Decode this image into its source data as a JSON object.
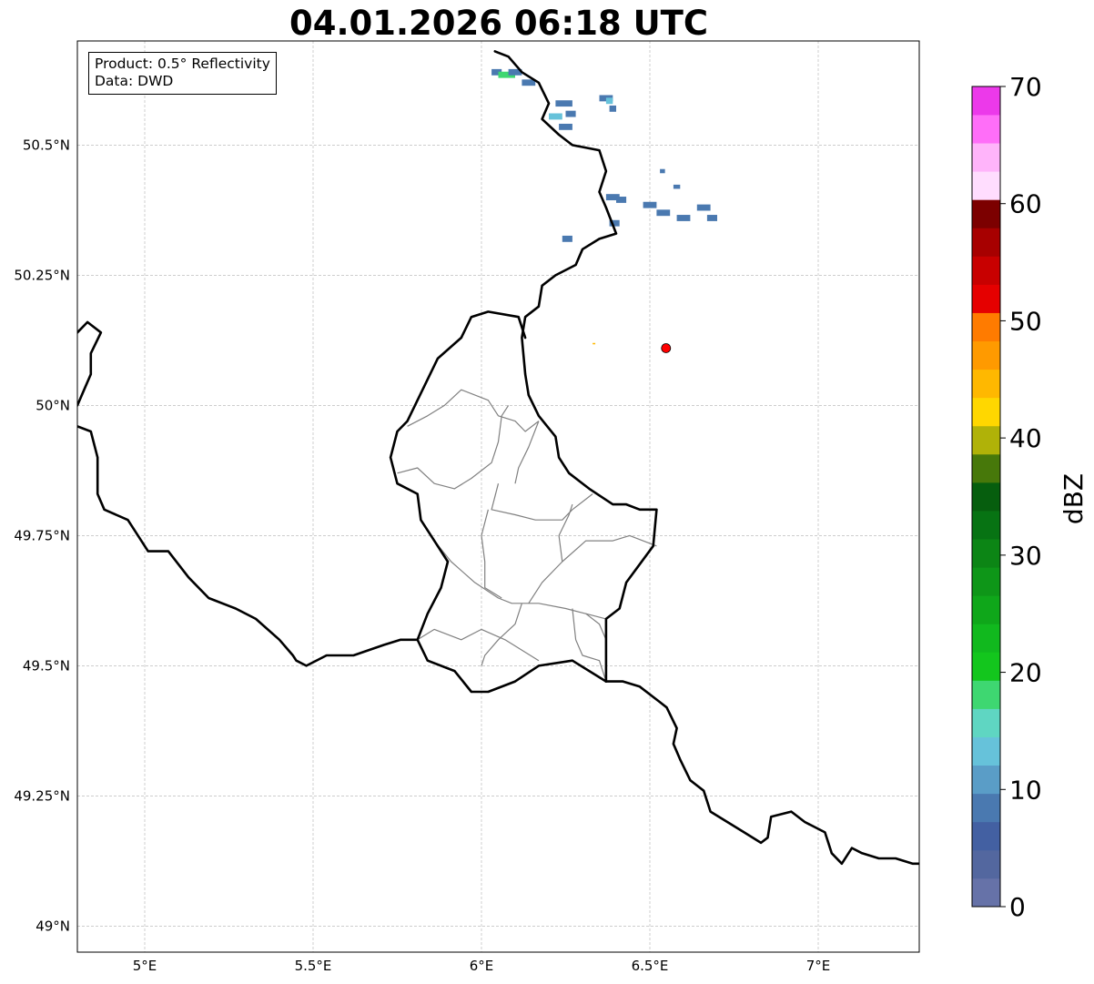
{
  "title": "04.01.2026 06:18 UTC",
  "info": {
    "product": "Product: 0.5° Reflectivity",
    "data": "Data: DWD"
  },
  "map": {
    "lon_range": [
      4.8,
      7.3
    ],
    "lat_range": [
      48.95,
      50.7
    ],
    "lat_ticks": [
      {
        "value": 50.5,
        "label": "50.5°N"
      },
      {
        "value": 50.25,
        "label": "50.25°N"
      },
      {
        "value": 50.0,
        "label": "50°N"
      },
      {
        "value": 49.75,
        "label": "49.75°N"
      },
      {
        "value": 49.5,
        "label": "49.5°N"
      },
      {
        "value": 49.25,
        "label": "49.25°N"
      },
      {
        "value": 49.0,
        "label": "49°N"
      }
    ],
    "lon_ticks": [
      {
        "value": 5.0,
        "label": "5°E"
      },
      {
        "value": 5.5,
        "label": "5.5°E"
      },
      {
        "value": 6.0,
        "label": "6°E"
      },
      {
        "value": 6.5,
        "label": "6.5°E"
      },
      {
        "value": 7.0,
        "label": "7°E"
      }
    ],
    "grid": true,
    "radar_site": {
      "lon": 6.548,
      "lat": 50.11,
      "color": "#ff0000"
    },
    "borders": [
      [
        [
          6.04,
          50.68
        ],
        [
          6.08,
          50.67
        ],
        [
          6.12,
          50.64
        ],
        [
          6.17,
          50.62
        ],
        [
          6.2,
          50.58
        ],
        [
          6.18,
          50.55
        ],
        [
          6.23,
          50.52
        ],
        [
          6.27,
          50.5
        ],
        [
          6.35,
          50.49
        ],
        [
          6.37,
          50.45
        ],
        [
          6.35,
          50.41
        ],
        [
          6.37,
          50.38
        ],
        [
          6.4,
          50.33
        ],
        [
          6.35,
          50.32
        ],
        [
          6.3,
          50.3
        ],
        [
          6.28,
          50.27
        ],
        [
          6.22,
          50.25
        ],
        [
          6.18,
          50.23
        ],
        [
          6.17,
          50.19
        ],
        [
          6.13,
          50.17
        ],
        [
          6.12,
          50.13
        ],
        [
          6.13,
          50.06
        ],
        [
          6.14,
          50.02
        ],
        [
          6.17,
          49.98
        ],
        [
          6.22,
          49.94
        ],
        [
          6.23,
          49.9
        ],
        [
          6.26,
          49.87
        ],
        [
          6.32,
          49.84
        ],
        [
          6.39,
          49.81
        ],
        [
          6.43,
          49.81
        ],
        [
          6.47,
          49.8
        ],
        [
          6.52,
          49.8
        ],
        [
          6.51,
          49.73
        ],
        [
          6.43,
          49.66
        ],
        [
          6.41,
          49.61
        ],
        [
          6.37,
          49.59
        ],
        [
          6.37,
          49.47
        ]
      ],
      [
        [
          6.37,
          49.47
        ],
        [
          6.27,
          49.51
        ],
        [
          6.17,
          49.5
        ],
        [
          6.1,
          49.47
        ],
        [
          6.02,
          49.45
        ],
        [
          5.97,
          49.45
        ],
        [
          5.92,
          49.49
        ],
        [
          5.84,
          49.51
        ],
        [
          5.81,
          49.55
        ],
        [
          5.76,
          49.55
        ],
        [
          5.71,
          49.54
        ],
        [
          5.62,
          49.52
        ],
        [
          5.54,
          49.52
        ],
        [
          5.48,
          49.5
        ],
        [
          5.45,
          49.51
        ],
        [
          5.44,
          49.52
        ],
        [
          5.4,
          49.55
        ],
        [
          5.33,
          49.59
        ],
        [
          5.27,
          49.61
        ],
        [
          5.19,
          49.63
        ],
        [
          5.13,
          49.67
        ],
        [
          5.07,
          49.72
        ],
        [
          5.01,
          49.72
        ],
        [
          4.95,
          49.78
        ],
        [
          4.88,
          49.8
        ],
        [
          4.86,
          49.83
        ],
        [
          4.86,
          49.9
        ],
        [
          4.84,
          49.95
        ],
        [
          4.8,
          49.96
        ]
      ],
      [
        [
          5.81,
          49.55
        ],
        [
          5.84,
          49.6
        ],
        [
          5.88,
          49.65
        ],
        [
          5.9,
          49.7
        ],
        [
          5.86,
          49.74
        ],
        [
          5.82,
          49.78
        ],
        [
          5.81,
          49.83
        ],
        [
          5.75,
          49.85
        ],
        [
          5.73,
          49.9
        ],
        [
          5.75,
          49.95
        ],
        [
          5.78,
          49.97
        ],
        [
          5.81,
          50.01
        ],
        [
          5.84,
          50.05
        ],
        [
          5.87,
          50.09
        ],
        [
          5.94,
          50.13
        ],
        [
          5.97,
          50.17
        ],
        [
          6.02,
          50.18
        ],
        [
          6.11,
          50.17
        ],
        [
          6.13,
          50.13
        ]
      ],
      [
        [
          4.8,
          50.14
        ],
        [
          4.83,
          50.16
        ],
        [
          4.87,
          50.14
        ],
        [
          4.84,
          50.1
        ],
        [
          4.84,
          50.06
        ],
        [
          4.82,
          50.03
        ],
        [
          4.8,
          50.0
        ]
      ],
      [
        [
          6.37,
          49.47
        ],
        [
          6.42,
          49.47
        ],
        [
          6.47,
          49.46
        ],
        [
          6.53,
          49.43
        ],
        [
          6.55,
          49.42
        ],
        [
          6.58,
          49.38
        ],
        [
          6.57,
          49.35
        ],
        [
          6.59,
          49.32
        ],
        [
          6.62,
          49.28
        ],
        [
          6.66,
          49.26
        ],
        [
          6.68,
          49.22
        ],
        [
          6.73,
          49.2
        ],
        [
          6.78,
          49.18
        ],
        [
          6.83,
          49.16
        ],
        [
          6.85,
          49.17
        ],
        [
          6.86,
          49.21
        ],
        [
          6.92,
          49.22
        ],
        [
          6.96,
          49.2
        ],
        [
          7.02,
          49.18
        ],
        [
          7.04,
          49.14
        ],
        [
          7.07,
          49.12
        ],
        [
          7.1,
          49.15
        ],
        [
          7.13,
          49.14
        ],
        [
          7.18,
          49.13
        ],
        [
          7.23,
          49.13
        ],
        [
          7.28,
          49.12
        ],
        [
          7.3,
          49.12
        ]
      ]
    ],
    "cantons": [
      [
        [
          5.81,
          49.55
        ],
        [
          5.86,
          49.57
        ],
        [
          5.94,
          49.55
        ],
        [
          6.0,
          49.57
        ],
        [
          6.07,
          49.55
        ],
        [
          6.12,
          49.53
        ],
        [
          6.17,
          49.51
        ]
      ],
      [
        [
          5.86,
          49.74
        ],
        [
          5.91,
          49.7
        ],
        [
          5.98,
          49.66
        ],
        [
          6.05,
          49.63
        ],
        [
          6.09,
          49.62
        ],
        [
          6.17,
          49.62
        ],
        [
          6.25,
          49.61
        ],
        [
          6.31,
          49.6
        ],
        [
          6.37,
          49.59
        ]
      ],
      [
        [
          5.78,
          49.96
        ],
        [
          5.84,
          49.98
        ],
        [
          5.89,
          50.0
        ],
        [
          5.94,
          50.03
        ],
        [
          6.02,
          50.01
        ],
        [
          6.05,
          49.98
        ],
        [
          6.1,
          49.97
        ],
        [
          6.13,
          49.95
        ],
        [
          6.17,
          49.97
        ]
      ],
      [
        [
          5.75,
          49.87
        ],
        [
          5.81,
          49.88
        ],
        [
          5.86,
          49.85
        ],
        [
          5.92,
          49.84
        ],
        [
          5.97,
          49.86
        ],
        [
          6.03,
          49.89
        ],
        [
          6.05,
          49.93
        ],
        [
          6.06,
          49.98
        ],
        [
          6.08,
          50.0
        ]
      ],
      [
        [
          6.05,
          49.85
        ],
        [
          6.03,
          49.8
        ],
        [
          6.1,
          49.79
        ],
        [
          6.16,
          49.78
        ],
        [
          6.24,
          49.78
        ],
        [
          6.27,
          49.8
        ],
        [
          6.31,
          49.82
        ],
        [
          6.33,
          49.83
        ]
      ],
      [
        [
          6.02,
          49.8
        ],
        [
          6.0,
          49.75
        ],
        [
          6.01,
          49.7
        ],
        [
          6.01,
          49.65
        ],
        [
          6.06,
          49.63
        ]
      ],
      [
        [
          6.14,
          49.62
        ],
        [
          6.18,
          49.66
        ],
        [
          6.24,
          49.7
        ],
        [
          6.31,
          49.74
        ],
        [
          6.39,
          49.74
        ],
        [
          6.44,
          49.75
        ],
        [
          6.52,
          49.73
        ]
      ],
      [
        [
          6.24,
          49.7
        ],
        [
          6.23,
          49.75
        ],
        [
          6.26,
          49.79
        ],
        [
          6.27,
          49.81
        ]
      ],
      [
        [
          6.17,
          49.97
        ],
        [
          6.14,
          49.92
        ],
        [
          6.11,
          49.88
        ],
        [
          6.1,
          49.85
        ]
      ],
      [
        [
          6.12,
          49.62
        ],
        [
          6.1,
          49.58
        ],
        [
          6.05,
          49.55
        ],
        [
          6.01,
          49.52
        ],
        [
          6.0,
          49.5
        ]
      ],
      [
        [
          6.27,
          49.61
        ],
        [
          6.28,
          49.55
        ],
        [
          6.3,
          49.52
        ],
        [
          6.35,
          49.51
        ],
        [
          6.37,
          49.47
        ]
      ],
      [
        [
          6.31,
          49.6
        ],
        [
          6.35,
          49.58
        ],
        [
          6.37,
          49.55
        ]
      ]
    ],
    "echoes": [
      {
        "lon": 6.03,
        "lat": 50.64,
        "w": 0.03,
        "h": 0.012,
        "dbz": 8
      },
      {
        "lon": 6.05,
        "lat": 50.635,
        "w": 0.05,
        "h": 0.012,
        "dbz": 18
      },
      {
        "lon": 6.08,
        "lat": 50.64,
        "w": 0.04,
        "h": 0.012,
        "dbz": 8
      },
      {
        "lon": 6.12,
        "lat": 50.62,
        "w": 0.04,
        "h": 0.012,
        "dbz": 8
      },
      {
        "lon": 6.22,
        "lat": 50.58,
        "w": 0.05,
        "h": 0.012,
        "dbz": 8
      },
      {
        "lon": 6.2,
        "lat": 50.555,
        "w": 0.04,
        "h": 0.012,
        "dbz": 14
      },
      {
        "lon": 6.25,
        "lat": 50.56,
        "w": 0.03,
        "h": 0.012,
        "dbz": 8
      },
      {
        "lon": 6.23,
        "lat": 50.535,
        "w": 0.04,
        "h": 0.012,
        "dbz": 8
      },
      {
        "lon": 6.35,
        "lat": 50.59,
        "w": 0.04,
        "h": 0.012,
        "dbz": 8
      },
      {
        "lon": 6.37,
        "lat": 50.585,
        "w": 0.02,
        "h": 0.012,
        "dbz": 14
      },
      {
        "lon": 6.38,
        "lat": 50.57,
        "w": 0.02,
        "h": 0.012,
        "dbz": 8
      },
      {
        "lon": 6.37,
        "lat": 50.4,
        "w": 0.04,
        "h": 0.012,
        "dbz": 8
      },
      {
        "lon": 6.4,
        "lat": 50.395,
        "w": 0.03,
        "h": 0.012,
        "dbz": 8
      },
      {
        "lon": 6.48,
        "lat": 50.385,
        "w": 0.04,
        "h": 0.012,
        "dbz": 8
      },
      {
        "lon": 6.52,
        "lat": 50.37,
        "w": 0.04,
        "h": 0.012,
        "dbz": 8
      },
      {
        "lon": 6.58,
        "lat": 50.36,
        "w": 0.04,
        "h": 0.012,
        "dbz": 8
      },
      {
        "lon": 6.64,
        "lat": 50.38,
        "w": 0.04,
        "h": 0.012,
        "dbz": 8
      },
      {
        "lon": 6.67,
        "lat": 50.36,
        "w": 0.03,
        "h": 0.012,
        "dbz": 8
      },
      {
        "lon": 6.38,
        "lat": 50.35,
        "w": 0.03,
        "h": 0.012,
        "dbz": 8
      },
      {
        "lon": 6.24,
        "lat": 50.32,
        "w": 0.03,
        "h": 0.012,
        "dbz": 8
      },
      {
        "lon": 6.53,
        "lat": 50.45,
        "w": 0.015,
        "h": 0.008,
        "dbz": 8
      },
      {
        "lon": 6.57,
        "lat": 50.42,
        "w": 0.02,
        "h": 0.008,
        "dbz": 8
      }
    ],
    "speckles": [
      {
        "lon": 6.33,
        "lat": 50.12,
        "dbz": 45
      }
    ]
  },
  "colorbar": {
    "label": "dBZ",
    "min": 0,
    "max": 70,
    "ticks": [
      0,
      10,
      20,
      30,
      40,
      50,
      60,
      70
    ],
    "tick_labels": [
      "0",
      "10",
      "20",
      "30",
      "40",
      "50",
      "60",
      "70"
    ],
    "colors": [
      "#6672a8",
      "#53679f",
      "#4360a2",
      "#4a79b0",
      "#5a9dc7",
      "#66c2da",
      "#5fd6c2",
      "#3ed771",
      "#13c61d",
      "#11b91e",
      "#0fa71a",
      "#0e9618",
      "#0c8515",
      "#077313",
      "#065e0e",
      "#47780a",
      "#b0b208",
      "#ffd700",
      "#ffb800",
      "#ff9a00",
      "#ff7b00",
      "#e50000",
      "#c80000",
      "#a70000",
      "#7c0000",
      "#ffddfe",
      "#ffb4fa",
      "#ff6ef8",
      "#ec39ea"
    ]
  }
}
